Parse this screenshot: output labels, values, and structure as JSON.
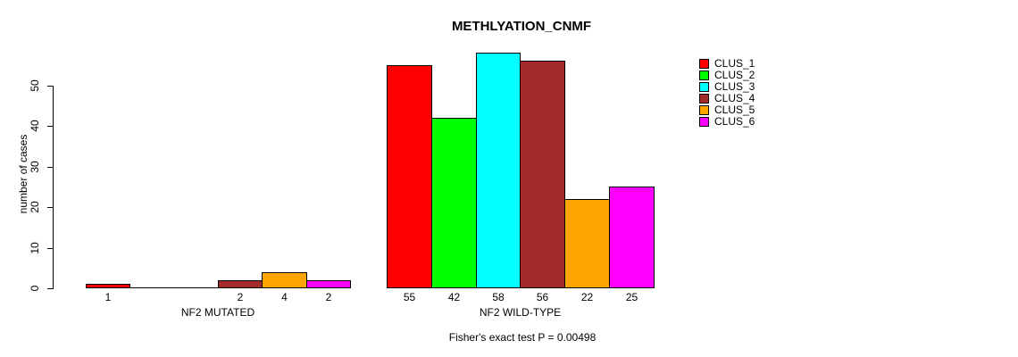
{
  "chart_data": {
    "type": "bar",
    "title": "METHLYATION_CNMF",
    "xlabel": "",
    "ylabel": "number of cases",
    "ylim": [
      0,
      58
    ],
    "yticks": [
      0,
      10,
      20,
      30,
      40,
      50
    ],
    "grid": false,
    "legend_position": "right",
    "series": [
      {
        "name": "CLUS_1",
        "color": "#FF0000"
      },
      {
        "name": "CLUS_2",
        "color": "#00FF00"
      },
      {
        "name": "CLUS_3",
        "color": "#00FFFF"
      },
      {
        "name": "CLUS_4",
        "color": "#A52A2A"
      },
      {
        "name": "CLUS_5",
        "color": "#FFA500"
      },
      {
        "name": "CLUS_6",
        "color": "#FF00FF"
      }
    ],
    "groups": [
      {
        "label": "NF2 MUTATED",
        "values": [
          1,
          0,
          0,
          2,
          4,
          2
        ],
        "bar_labels": [
          "1",
          "",
          "",
          "2",
          "4",
          "2"
        ]
      },
      {
        "label": "NF2 WILD-TYPE",
        "values": [
          55,
          42,
          58,
          56,
          22,
          25
        ],
        "bar_labels": [
          "55",
          "42",
          "58",
          "56",
          "22",
          "25"
        ]
      }
    ],
    "annotation": "Fisher's exact test P = 0.00498"
  }
}
